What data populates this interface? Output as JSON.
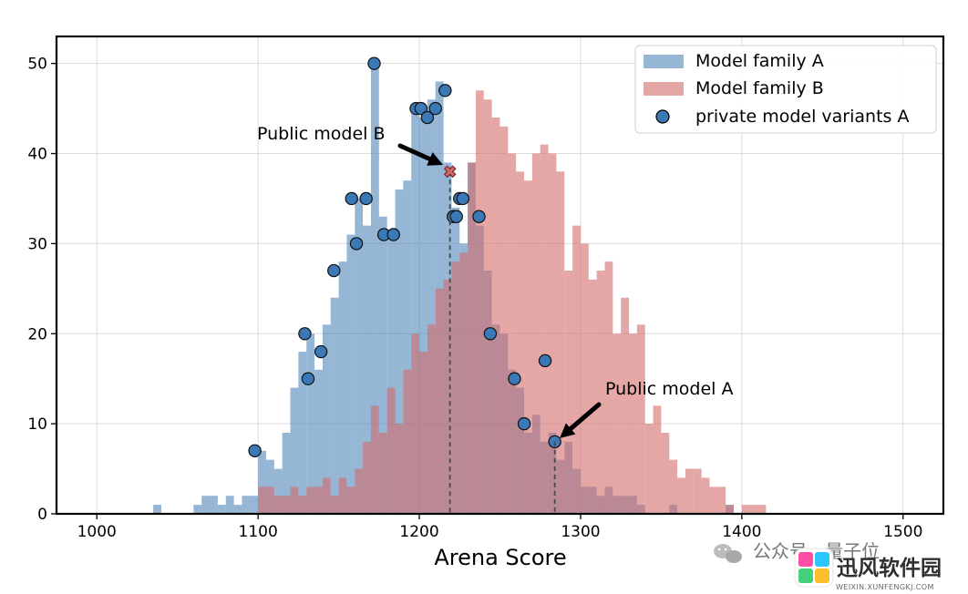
{
  "chart_data": {
    "type": "histogram",
    "xlabel": "Arena Score",
    "ylabel": "",
    "xlim": [
      975,
      1525
    ],
    "ylim": [
      0,
      53
    ],
    "x_ticks": [
      1000,
      1100,
      1200,
      1300,
      1400,
      1500
    ],
    "y_ticks": [
      0,
      10,
      20,
      30,
      40,
      50
    ],
    "grid": true,
    "legend_position": "top-right",
    "series": [
      {
        "name": "Model family A",
        "color": "#4f86b8",
        "bins": [
          {
            "x": 1035,
            "y": 1
          },
          {
            "x": 1060,
            "y": 1
          },
          {
            "x": 1065,
            "y": 2
          },
          {
            "x": 1070,
            "y": 2
          },
          {
            "x": 1075,
            "y": 1
          },
          {
            "x": 1080,
            "y": 2
          },
          {
            "x": 1085,
            "y": 1
          },
          {
            "x": 1090,
            "y": 2
          },
          {
            "x": 1095,
            "y": 2
          },
          {
            "x": 1100,
            "y": 7
          },
          {
            "x": 1105,
            "y": 6
          },
          {
            "x": 1110,
            "y": 5
          },
          {
            "x": 1115,
            "y": 9
          },
          {
            "x": 1120,
            "y": 14
          },
          {
            "x": 1125,
            "y": 18
          },
          {
            "x": 1130,
            "y": 20
          },
          {
            "x": 1135,
            "y": 16
          },
          {
            "x": 1140,
            "y": 21
          },
          {
            "x": 1145,
            "y": 24
          },
          {
            "x": 1150,
            "y": 28
          },
          {
            "x": 1155,
            "y": 31
          },
          {
            "x": 1160,
            "y": 35
          },
          {
            "x": 1165,
            "y": 32
          },
          {
            "x": 1170,
            "y": 50
          },
          {
            "x": 1175,
            "y": 33
          },
          {
            "x": 1180,
            "y": 31
          },
          {
            "x": 1185,
            "y": 36
          },
          {
            "x": 1190,
            "y": 37
          },
          {
            "x": 1195,
            "y": 45
          },
          {
            "x": 1200,
            "y": 44
          },
          {
            "x": 1205,
            "y": 46
          },
          {
            "x": 1210,
            "y": 48
          },
          {
            "x": 1215,
            "y": 39
          },
          {
            "x": 1220,
            "y": 34
          },
          {
            "x": 1225,
            "y": 30
          },
          {
            "x": 1230,
            "y": 39
          },
          {
            "x": 1235,
            "y": 32
          },
          {
            "x": 1240,
            "y": 27
          },
          {
            "x": 1245,
            "y": 21
          },
          {
            "x": 1250,
            "y": 20
          },
          {
            "x": 1255,
            "y": 16
          },
          {
            "x": 1260,
            "y": 14
          },
          {
            "x": 1265,
            "y": 9
          },
          {
            "x": 1270,
            "y": 11
          },
          {
            "x": 1275,
            "y": 8
          },
          {
            "x": 1280,
            "y": 9
          },
          {
            "x": 1285,
            "y": 6
          },
          {
            "x": 1290,
            "y": 8
          },
          {
            "x": 1295,
            "y": 5
          },
          {
            "x": 1300,
            "y": 3
          },
          {
            "x": 1305,
            "y": 3
          },
          {
            "x": 1310,
            "y": 2
          },
          {
            "x": 1315,
            "y": 3
          },
          {
            "x": 1320,
            "y": 2
          },
          {
            "x": 1325,
            "y": 2
          },
          {
            "x": 1330,
            "y": 2
          },
          {
            "x": 1335,
            "y": 1
          },
          {
            "x": 1355,
            "y": 1
          },
          {
            "x": 1390,
            "y": 1
          }
        ]
      },
      {
        "name": "Model family B",
        "color": "#d46a6a",
        "bins": [
          {
            "x": 1100,
            "y": 3
          },
          {
            "x": 1105,
            "y": 3
          },
          {
            "x": 1110,
            "y": 2
          },
          {
            "x": 1115,
            "y": 2
          },
          {
            "x": 1120,
            "y": 3
          },
          {
            "x": 1125,
            "y": 2
          },
          {
            "x": 1130,
            "y": 3
          },
          {
            "x": 1135,
            "y": 3
          },
          {
            "x": 1140,
            "y": 4
          },
          {
            "x": 1145,
            "y": 2
          },
          {
            "x": 1150,
            "y": 4
          },
          {
            "x": 1155,
            "y": 3
          },
          {
            "x": 1160,
            "y": 5
          },
          {
            "x": 1165,
            "y": 8
          },
          {
            "x": 1170,
            "y": 12
          },
          {
            "x": 1175,
            "y": 9
          },
          {
            "x": 1180,
            "y": 14
          },
          {
            "x": 1185,
            "y": 10
          },
          {
            "x": 1190,
            "y": 16
          },
          {
            "x": 1195,
            "y": 20
          },
          {
            "x": 1200,
            "y": 18
          },
          {
            "x": 1205,
            "y": 21
          },
          {
            "x": 1210,
            "y": 25
          },
          {
            "x": 1215,
            "y": 26
          },
          {
            "x": 1220,
            "y": 28
          },
          {
            "x": 1225,
            "y": 29
          },
          {
            "x": 1230,
            "y": 39
          },
          {
            "x": 1235,
            "y": 47
          },
          {
            "x": 1240,
            "y": 46
          },
          {
            "x": 1245,
            "y": 44
          },
          {
            "x": 1250,
            "y": 43
          },
          {
            "x": 1255,
            "y": 40
          },
          {
            "x": 1260,
            "y": 38
          },
          {
            "x": 1265,
            "y": 37
          },
          {
            "x": 1270,
            "y": 40
          },
          {
            "x": 1275,
            "y": 41
          },
          {
            "x": 1280,
            "y": 40
          },
          {
            "x": 1285,
            "y": 38
          },
          {
            "x": 1290,
            "y": 27
          },
          {
            "x": 1295,
            "y": 32
          },
          {
            "x": 1300,
            "y": 30
          },
          {
            "x": 1305,
            "y": 26
          },
          {
            "x": 1310,
            "y": 27
          },
          {
            "x": 1315,
            "y": 28
          },
          {
            "x": 1320,
            "y": 20
          },
          {
            "x": 1325,
            "y": 24
          },
          {
            "x": 1330,
            "y": 20
          },
          {
            "x": 1335,
            "y": 21
          },
          {
            "x": 1340,
            "y": 10
          },
          {
            "x": 1345,
            "y": 12
          },
          {
            "x": 1350,
            "y": 9
          },
          {
            "x": 1355,
            "y": 6
          },
          {
            "x": 1360,
            "y": 4
          },
          {
            "x": 1365,
            "y": 5
          },
          {
            "x": 1370,
            "y": 5
          },
          {
            "x": 1375,
            "y": 4
          },
          {
            "x": 1380,
            "y": 3
          },
          {
            "x": 1385,
            "y": 3
          },
          {
            "x": 1390,
            "y": 1
          },
          {
            "x": 1400,
            "y": 1
          },
          {
            "x": 1405,
            "y": 1
          },
          {
            "x": 1410,
            "y": 1
          }
        ]
      }
    ],
    "private_model_variants_a": {
      "name": "private model variants A",
      "color": "#3b78b6",
      "points": [
        {
          "x": 1098,
          "y": 7
        },
        {
          "x": 1129,
          "y": 20
        },
        {
          "x": 1131,
          "y": 15
        },
        {
          "x": 1139,
          "y": 18
        },
        {
          "x": 1147,
          "y": 27
        },
        {
          "x": 1158,
          "y": 35
        },
        {
          "x": 1161,
          "y": 30
        },
        {
          "x": 1167,
          "y": 35
        },
        {
          "x": 1172,
          "y": 50
        },
        {
          "x": 1178,
          "y": 31
        },
        {
          "x": 1184,
          "y": 31
        },
        {
          "x": 1198,
          "y": 45
        },
        {
          "x": 1201,
          "y": 45
        },
        {
          "x": 1205,
          "y": 44
        },
        {
          "x": 1210,
          "y": 45
        },
        {
          "x": 1216,
          "y": 47
        },
        {
          "x": 1221,
          "y": 33
        },
        {
          "x": 1223,
          "y": 33
        },
        {
          "x": 1225,
          "y": 35
        },
        {
          "x": 1227,
          "y": 35
        },
        {
          "x": 1237,
          "y": 33
        },
        {
          "x": 1244,
          "y": 20
        },
        {
          "x": 1259,
          "y": 15
        },
        {
          "x": 1265,
          "y": 10
        },
        {
          "x": 1278,
          "y": 17
        },
        {
          "x": 1284,
          "y": 8
        }
      ]
    },
    "public_model_a": {
      "label": "Public model A",
      "x": 1284,
      "y": 8,
      "marker": "circle"
    },
    "public_model_b": {
      "label": "Public model B",
      "x": 1219,
      "y": 38,
      "marker": "x",
      "color": "#d46a6a"
    }
  },
  "watermark": {
    "text_left": "公众号 · 量子位",
    "brand": "迅风软件园",
    "url": "WEIXIN.XUNFENGKJ.COM"
  }
}
